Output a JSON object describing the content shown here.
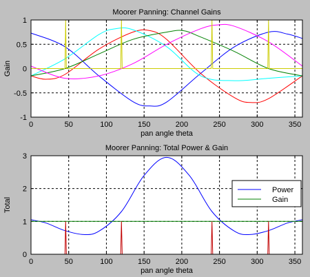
{
  "chart_data": [
    {
      "type": "line",
      "title": "Moorer Panning: Channel Gains",
      "xlabel": "pan angle theta",
      "ylabel": "Gain",
      "xlim": [
        0,
        360
      ],
      "ylim": [
        -1,
        1
      ],
      "xticks": [
        "0",
        "50",
        "100",
        "150",
        "200",
        "250",
        "300",
        "350"
      ],
      "yticks": [
        "-1",
        "-0.5",
        "0",
        "0.5",
        "1"
      ],
      "grid": true,
      "series": [
        {
          "color": "#0000ff",
          "points": [
            [
              0,
              0.73
            ],
            [
              45,
              0.45
            ],
            [
              90,
              -0.15
            ],
            [
              135,
              -0.68
            ],
            [
              158,
              -0.77
            ],
            [
              180,
              -0.69
            ],
            [
              225,
              -0.1
            ],
            [
              270,
              0.45
            ],
            [
              315,
              0.75
            ],
            [
              340,
              0.71
            ],
            [
              360,
              0.62
            ]
          ]
        },
        {
          "color": "#ff0000",
          "points": [
            [
              0,
              -0.15
            ],
            [
              20,
              -0.22
            ],
            [
              45,
              -0.12
            ],
            [
              90,
              0.4
            ],
            [
              135,
              0.75
            ],
            [
              158,
              0.78
            ],
            [
              180,
              0.6
            ],
            [
              225,
              -0.1
            ],
            [
              270,
              -0.6
            ],
            [
              292,
              -0.7
            ],
            [
              315,
              -0.62
            ],
            [
              360,
              -0.15
            ]
          ]
        },
        {
          "color": "#00ffff",
          "points": [
            [
              0,
              -0.15
            ],
            [
              45,
              0.2
            ],
            [
              90,
              0.7
            ],
            [
              112,
              0.82
            ],
            [
              135,
              0.8
            ],
            [
              180,
              0.45
            ],
            [
              225,
              -0.15
            ],
            [
              270,
              -0.25
            ],
            [
              315,
              -0.2
            ],
            [
              360,
              -0.15
            ]
          ]
        },
        {
          "color": "#008000",
          "points": [
            [
              0,
              -0.15
            ],
            [
              45,
              0.0
            ],
            [
              90,
              0.3
            ],
            [
              135,
              0.6
            ],
            [
              180,
              0.75
            ],
            [
              202,
              0.78
            ],
            [
              225,
              0.65
            ],
            [
              270,
              0.35
            ],
            [
              315,
              0.0
            ],
            [
              360,
              -0.15
            ]
          ]
        },
        {
          "color": "#ff00ff",
          "points": [
            [
              0,
              0.05
            ],
            [
              45,
              -0.2
            ],
            [
              90,
              -0.15
            ],
            [
              135,
              0.1
            ],
            [
              180,
              0.5
            ],
            [
              225,
              0.82
            ],
            [
              248,
              0.9
            ],
            [
              270,
              0.87
            ],
            [
              315,
              0.55
            ],
            [
              360,
              0.05
            ]
          ]
        },
        {
          "color": "#cccc00",
          "points": [
            [
              0,
              0
            ],
            [
              45,
              0
            ],
            [
              46,
              1
            ],
            [
              47,
              0
            ],
            [
              119,
              0
            ],
            [
              120,
              1
            ],
            [
              121,
              0
            ],
            [
              239,
              0
            ],
            [
              240,
              1
            ],
            [
              241,
              0
            ],
            [
              314,
              0
            ],
            [
              315,
              1
            ],
            [
              316,
              0
            ],
            [
              360,
              0
            ]
          ]
        }
      ]
    },
    {
      "type": "line",
      "title": "Moorer Panning: Total Power & Gain",
      "xlabel": "pan angle theta",
      "ylabel": "Total",
      "xlim": [
        0,
        360
      ],
      "ylim": [
        0,
        3
      ],
      "xticks": [
        "0",
        "50",
        "100",
        "150",
        "200",
        "250",
        "300",
        "350"
      ],
      "yticks": [
        "0",
        "1",
        "2",
        "3"
      ],
      "grid": true,
      "legend": "right",
      "series": [
        {
          "name": "Power",
          "color": "#0000ff",
          "points": [
            [
              0,
              1.05
            ],
            [
              20,
              0.95
            ],
            [
              45,
              0.72
            ],
            [
              70,
              0.6
            ],
            [
              90,
              0.7
            ],
            [
              120,
              1.3
            ],
            [
              150,
              2.4
            ],
            [
              180,
              2.95
            ],
            [
              210,
              2.4
            ],
            [
              240,
              1.3
            ],
            [
              270,
              0.7
            ],
            [
              290,
              0.6
            ],
            [
              315,
              0.72
            ],
            [
              340,
              0.95
            ],
            [
              360,
              1.05
            ]
          ]
        },
        {
          "name": "Gain",
          "color": "#008000",
          "points": [
            [
              0,
              1
            ],
            [
              360,
              1
            ]
          ]
        },
        {
          "color": "#c00000",
          "points": [
            [
              0,
              0
            ],
            [
              45,
              0
            ],
            [
              46,
              1
            ],
            [
              47,
              0
            ],
            [
              119,
              0
            ],
            [
              120,
              1
            ],
            [
              121,
              0
            ],
            [
              239,
              0
            ],
            [
              240,
              1
            ],
            [
              241,
              0
            ],
            [
              314,
              0
            ],
            [
              315,
              1
            ],
            [
              316,
              0
            ],
            [
              360,
              0
            ]
          ]
        }
      ]
    }
  ]
}
